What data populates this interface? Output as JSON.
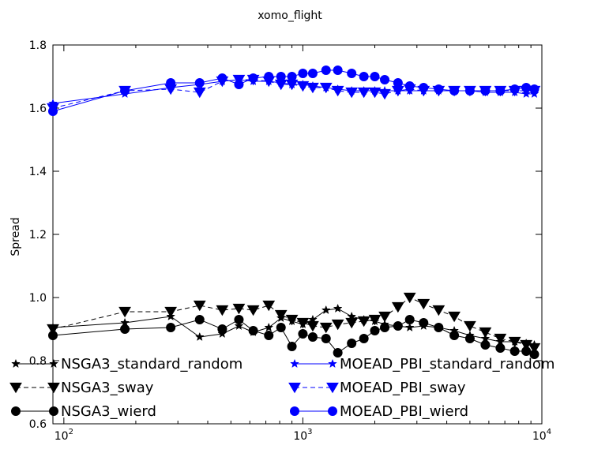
{
  "chart_data": {
    "type": "line",
    "title": "xomo_flight",
    "xlabel": "",
    "ylabel": "Spread",
    "xscale": "log",
    "xlim": [
      90,
      10000
    ],
    "ylim": [
      0.6,
      1.8
    ],
    "x_ticks": [
      {
        "value": 100,
        "base": "10",
        "exp": "2"
      },
      {
        "value": 1000,
        "base": "10",
        "exp": "3"
      },
      {
        "value": 10000,
        "base": "10",
        "exp": "4"
      }
    ],
    "y_ticks": [
      {
        "value": 0.6,
        "label": "0.6"
      },
      {
        "value": 0.8,
        "label": "0.8"
      },
      {
        "value": 1.0,
        "label": "1.0"
      },
      {
        "value": 1.2,
        "label": "1.2"
      },
      {
        "value": 1.4,
        "label": "1.4"
      },
      {
        "value": 1.6,
        "label": "1.6"
      },
      {
        "value": 1.8,
        "label": "1.8"
      }
    ],
    "grid": false,
    "legend_position": "lower-center, two columns",
    "series": [
      {
        "name": "NSGA3_standard_random",
        "color": "#000000",
        "marker": "star",
        "dash": "solid",
        "x": [
          90,
          180,
          280,
          370,
          460,
          540,
          620,
          720,
          810,
          900,
          1000,
          1100,
          1250,
          1400,
          1600,
          1800,
          2000,
          2200,
          2500,
          2800,
          3200,
          3700,
          4300,
          5000,
          5800,
          6700,
          7700,
          8600,
          9300
        ],
        "y": [
          0.905,
          0.92,
          0.94,
          0.875,
          0.885,
          0.91,
          0.89,
          0.905,
          0.935,
          0.925,
          0.915,
          0.93,
          0.96,
          0.965,
          0.94,
          0.93,
          0.925,
          0.915,
          0.91,
          0.905,
          0.91,
          0.905,
          0.895,
          0.88,
          0.87,
          0.86,
          0.86,
          0.855,
          0.85
        ]
      },
      {
        "name": "NSGA3_sway",
        "color": "#000000",
        "marker": "triangle-down",
        "dash": "dashed",
        "x": [
          90,
          180,
          280,
          370,
          460,
          540,
          620,
          720,
          810,
          900,
          1000,
          1100,
          1250,
          1400,
          1600,
          1800,
          2000,
          2200,
          2500,
          2800,
          3200,
          3700,
          4300,
          5000,
          5800,
          6700,
          7700,
          8600,
          9300
        ],
        "y": [
          0.9,
          0.955,
          0.955,
          0.975,
          0.96,
          0.965,
          0.96,
          0.975,
          0.945,
          0.93,
          0.92,
          0.91,
          0.905,
          0.915,
          0.92,
          0.925,
          0.93,
          0.94,
          0.97,
          1.0,
          0.98,
          0.96,
          0.94,
          0.91,
          0.89,
          0.87,
          0.86,
          0.85,
          0.84
        ]
      },
      {
        "name": "NSGA3_wierd",
        "color": "#000000",
        "marker": "circle",
        "dash": "solid",
        "x": [
          90,
          180,
          280,
          370,
          460,
          540,
          620,
          720,
          810,
          900,
          1000,
          1100,
          1250,
          1400,
          1600,
          1800,
          2000,
          2200,
          2500,
          2800,
          3200,
          3700,
          4300,
          5000,
          5800,
          6700,
          7700,
          8600,
          9300
        ],
        "y": [
          0.88,
          0.9,
          0.905,
          0.93,
          0.9,
          0.93,
          0.895,
          0.88,
          0.905,
          0.845,
          0.885,
          0.875,
          0.87,
          0.825,
          0.855,
          0.87,
          0.895,
          0.905,
          0.91,
          0.93,
          0.92,
          0.905,
          0.88,
          0.87,
          0.85,
          0.84,
          0.83,
          0.83,
          0.82
        ]
      },
      {
        "name": "MOEAD_PBI_standard_random",
        "color": "#0000ff",
        "marker": "star",
        "dash": "solid",
        "x": [
          90,
          180,
          280,
          370,
          460,
          540,
          620,
          720,
          810,
          900,
          1000,
          1100,
          1250,
          1400,
          1600,
          1800,
          2000,
          2200,
          2500,
          2800,
          3200,
          3700,
          4300,
          5000,
          5800,
          6700,
          7700,
          8600,
          9300
        ],
        "y": [
          1.615,
          1.645,
          1.665,
          1.675,
          1.685,
          1.69,
          1.685,
          1.685,
          1.68,
          1.675,
          1.675,
          1.67,
          1.665,
          1.66,
          1.655,
          1.655,
          1.655,
          1.655,
          1.655,
          1.655,
          1.655,
          1.655,
          1.655,
          1.655,
          1.65,
          1.65,
          1.65,
          1.645,
          1.645
        ]
      },
      {
        "name": "MOEAD_PBI_sway",
        "color": "#0000ff",
        "marker": "triangle-down",
        "dash": "dashed",
        "x": [
          90,
          180,
          280,
          370,
          460,
          540,
          620,
          720,
          810,
          900,
          1000,
          1100,
          1250,
          1400,
          1600,
          1800,
          2000,
          2200,
          2500,
          2800,
          3200,
          3700,
          4300,
          5000,
          5800,
          6700,
          7700,
          8600,
          9300
        ],
        "y": [
          1.6,
          1.655,
          1.66,
          1.65,
          1.685,
          1.69,
          1.69,
          1.685,
          1.675,
          1.675,
          1.67,
          1.665,
          1.665,
          1.655,
          1.65,
          1.65,
          1.65,
          1.645,
          1.655,
          1.66,
          1.655,
          1.655,
          1.655,
          1.655,
          1.655,
          1.655,
          1.655,
          1.655,
          1.655
        ]
      },
      {
        "name": "MOEAD_PBI_wierd",
        "color": "#0000ff",
        "marker": "circle",
        "dash": "solid",
        "x": [
          90,
          180,
          280,
          370,
          460,
          540,
          620,
          720,
          810,
          900,
          1000,
          1100,
          1250,
          1400,
          1600,
          1800,
          2000,
          2200,
          2500,
          2800,
          3200,
          3700,
          4300,
          5000,
          5800,
          6700,
          7700,
          8600,
          9300
        ],
        "y": [
          1.59,
          1.655,
          1.68,
          1.68,
          1.695,
          1.675,
          1.695,
          1.7,
          1.7,
          1.7,
          1.71,
          1.71,
          1.72,
          1.72,
          1.71,
          1.7,
          1.7,
          1.69,
          1.68,
          1.67,
          1.665,
          1.66,
          1.655,
          1.655,
          1.655,
          1.655,
          1.66,
          1.665,
          1.66
        ]
      }
    ]
  }
}
